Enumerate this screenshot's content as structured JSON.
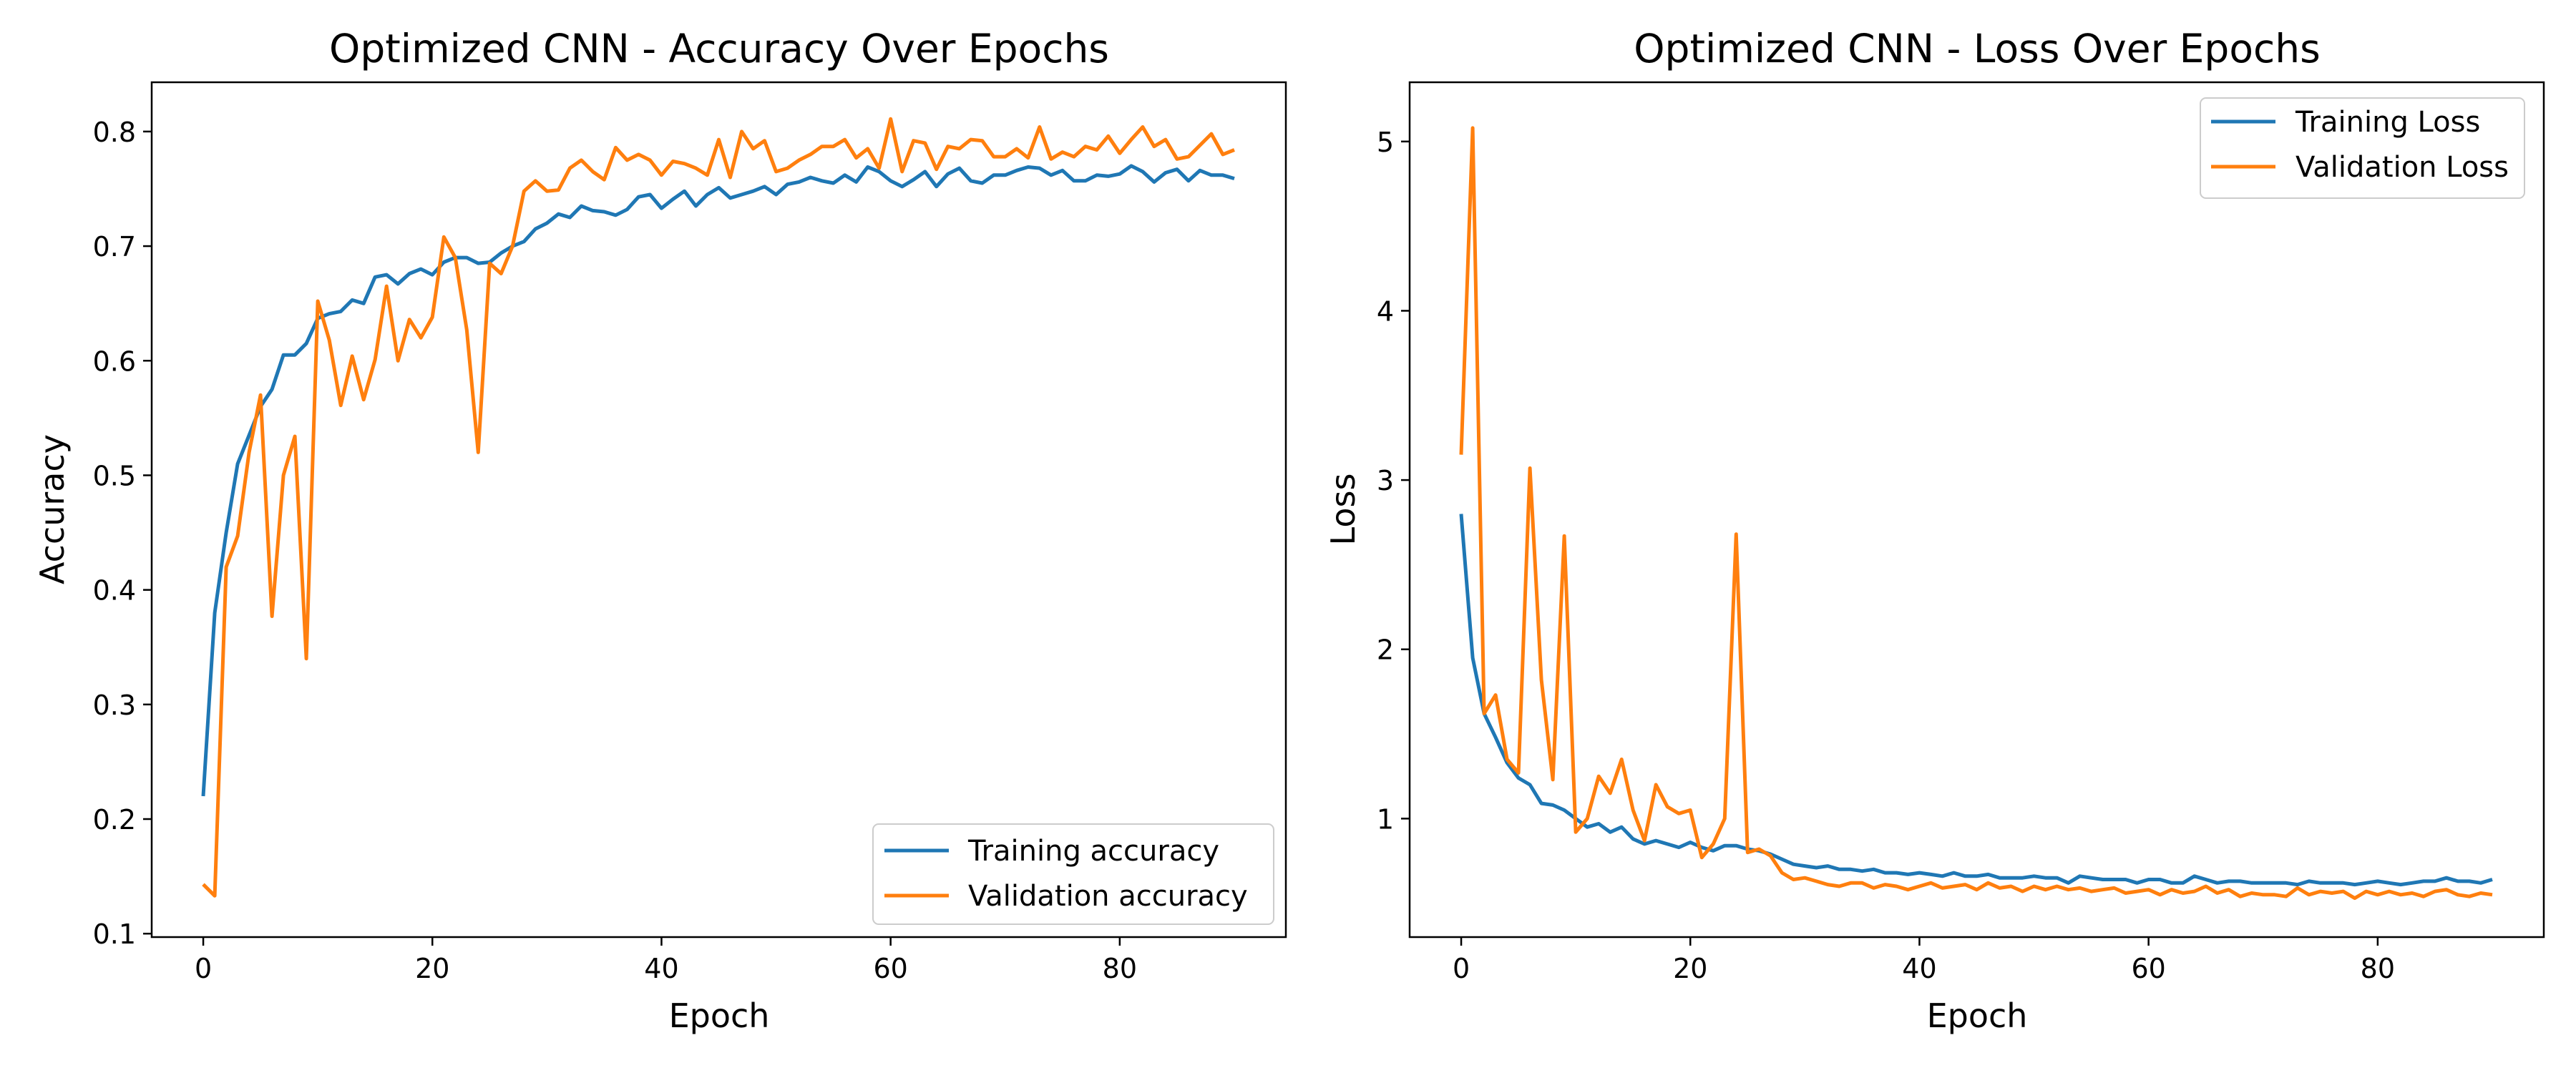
{
  "chart_data": [
    {
      "type": "line",
      "title": "Optimized CNN - Accuracy Over Epochs",
      "xlabel": "Epoch",
      "ylabel": "Accuracy",
      "xlim": [
        -4.5,
        94.5
      ],
      "ylim": [
        0.097,
        0.843
      ],
      "xticks": [
        "0",
        "20",
        "40",
        "60",
        "80"
      ],
      "yticks": [
        "0.1",
        "0.2",
        "0.3",
        "0.4",
        "0.5",
        "0.6",
        "0.7",
        "0.8"
      ],
      "grid": false,
      "legend_position": "lower right",
      "series": [
        {
          "name": "Training accuracy",
          "color": "#1f77b4",
          "x": [
            0,
            1,
            2,
            3,
            4,
            5,
            6,
            7,
            8,
            9,
            10,
            11,
            12,
            13,
            14,
            15,
            16,
            17,
            18,
            19,
            20,
            21,
            22,
            23,
            24,
            25,
            26,
            27,
            28,
            29,
            30,
            31,
            32,
            33,
            34,
            35,
            36,
            37,
            38,
            39,
            40,
            41,
            42,
            43,
            44,
            45,
            46,
            47,
            48,
            49,
            50,
            51,
            52,
            53,
            54,
            55,
            56,
            57,
            58,
            59,
            60,
            61,
            62,
            63,
            64,
            65,
            66,
            67,
            68,
            69,
            70,
            71,
            72,
            73,
            74,
            75,
            76,
            77,
            78,
            79,
            80,
            81,
            82,
            83,
            84,
            85,
            86,
            87,
            88,
            89,
            90
          ],
          "values": [
            0.22,
            0.38,
            0.45,
            0.51,
            0.535,
            0.56,
            0.575,
            0.605,
            0.605,
            0.615,
            0.637,
            0.641,
            0.643,
            0.653,
            0.65,
            0.673,
            0.675,
            0.667,
            0.676,
            0.68,
            0.675,
            0.686,
            0.69,
            0.69,
            0.685,
            0.686,
            0.694,
            0.7,
            0.704,
            0.715,
            0.72,
            0.728,
            0.725,
            0.735,
            0.731,
            0.73,
            0.727,
            0.732,
            0.743,
            0.745,
            0.733,
            0.741,
            0.748,
            0.735,
            0.745,
            0.751,
            0.742,
            0.745,
            0.748,
            0.752,
            0.745,
            0.754,
            0.756,
            0.76,
            0.757,
            0.755,
            0.762,
            0.756,
            0.769,
            0.765,
            0.757,
            0.752,
            0.758,
            0.765,
            0.752,
            0.763,
            0.768,
            0.757,
            0.755,
            0.762,
            0.762,
            0.766,
            0.769,
            0.768,
            0.762,
            0.766,
            0.757,
            0.757,
            0.762,
            0.761,
            0.763,
            0.77,
            0.765,
            0.756,
            0.764,
            0.767,
            0.757,
            0.766,
            0.762,
            0.762,
            0.759
          ]
        },
        {
          "name": "Validation accuracy",
          "color": "#ff7f0e",
          "x": [
            0,
            1,
            2,
            3,
            4,
            5,
            6,
            7,
            8,
            9,
            10,
            11,
            12,
            13,
            14,
            15,
            16,
            17,
            18,
            19,
            20,
            21,
            22,
            23,
            24,
            25,
            26,
            27,
            28,
            29,
            30,
            31,
            32,
            33,
            34,
            35,
            36,
            37,
            38,
            39,
            40,
            41,
            42,
            43,
            44,
            45,
            46,
            47,
            48,
            49,
            50,
            51,
            52,
            53,
            54,
            55,
            56,
            57,
            58,
            59,
            60,
            61,
            62,
            63,
            64,
            65,
            66,
            67,
            68,
            69,
            70,
            71,
            72,
            73,
            74,
            75,
            76,
            77,
            78,
            79,
            80,
            81,
            82,
            83,
            84,
            85,
            86,
            87,
            88,
            89,
            90
          ],
          "values": [
            0.143,
            0.133,
            0.42,
            0.447,
            0.52,
            0.57,
            0.377,
            0.5,
            0.534,
            0.34,
            0.652,
            0.618,
            0.561,
            0.604,
            0.566,
            0.601,
            0.665,
            0.6,
            0.636,
            0.62,
            0.638,
            0.708,
            0.69,
            0.627,
            0.52,
            0.685,
            0.676,
            0.7,
            0.748,
            0.757,
            0.748,
            0.749,
            0.768,
            0.775,
            0.765,
            0.758,
            0.786,
            0.775,
            0.78,
            0.775,
            0.762,
            0.774,
            0.772,
            0.768,
            0.762,
            0.793,
            0.76,
            0.8,
            0.785,
            0.792,
            0.765,
            0.768,
            0.775,
            0.78,
            0.787,
            0.787,
            0.793,
            0.777,
            0.785,
            0.768,
            0.811,
            0.765,
            0.792,
            0.79,
            0.767,
            0.787,
            0.785,
            0.793,
            0.792,
            0.778,
            0.778,
            0.785,
            0.777,
            0.804,
            0.776,
            0.782,
            0.778,
            0.787,
            0.784,
            0.796,
            0.781,
            0.793,
            0.804,
            0.787,
            0.793,
            0.776,
            0.778,
            0.788,
            0.798,
            0.78,
            0.784
          ]
        }
      ]
    },
    {
      "type": "line",
      "title": "Optimized CNN - Loss Over Epochs",
      "xlabel": "Epoch",
      "ylabel": "Loss",
      "xlim": [
        -4.5,
        94.5
      ],
      "ylim": [
        0.3,
        5.35
      ],
      "xticks": [
        "0",
        "20",
        "40",
        "60",
        "80"
      ],
      "yticks": [
        "1",
        "2",
        "3",
        "4",
        "5"
      ],
      "grid": false,
      "legend_position": "upper right",
      "series": [
        {
          "name": "Training Loss",
          "color": "#1f77b4",
          "x": [
            0,
            1,
            2,
            3,
            4,
            5,
            6,
            7,
            8,
            9,
            10,
            11,
            12,
            13,
            14,
            15,
            16,
            17,
            18,
            19,
            20,
            21,
            22,
            23,
            24,
            25,
            26,
            27,
            28,
            29,
            30,
            31,
            32,
            33,
            34,
            35,
            36,
            37,
            38,
            39,
            40,
            41,
            42,
            43,
            44,
            45,
            46,
            47,
            48,
            49,
            50,
            51,
            52,
            53,
            54,
            55,
            56,
            57,
            58,
            59,
            60,
            61,
            62,
            63,
            64,
            65,
            66,
            67,
            68,
            69,
            70,
            71,
            72,
            73,
            74,
            75,
            76,
            77,
            78,
            79,
            80,
            81,
            82,
            83,
            84,
            85,
            86,
            87,
            88,
            89,
            90
          ],
          "values": [
            2.8,
            1.95,
            1.62,
            1.48,
            1.33,
            1.24,
            1.2,
            1.09,
            1.08,
            1.05,
            1.0,
            0.95,
            0.97,
            0.92,
            0.95,
            0.88,
            0.85,
            0.87,
            0.85,
            0.83,
            0.86,
            0.83,
            0.81,
            0.84,
            0.84,
            0.82,
            0.81,
            0.79,
            0.76,
            0.73,
            0.72,
            0.71,
            0.72,
            0.7,
            0.7,
            0.69,
            0.7,
            0.68,
            0.68,
            0.67,
            0.68,
            0.67,
            0.66,
            0.68,
            0.66,
            0.66,
            0.67,
            0.65,
            0.65,
            0.65,
            0.66,
            0.65,
            0.65,
            0.62,
            0.66,
            0.65,
            0.64,
            0.64,
            0.64,
            0.62,
            0.64,
            0.64,
            0.62,
            0.62,
            0.66,
            0.64,
            0.62,
            0.63,
            0.63,
            0.62,
            0.62,
            0.62,
            0.62,
            0.61,
            0.63,
            0.62,
            0.62,
            0.62,
            0.61,
            0.62,
            0.63,
            0.62,
            0.61,
            0.62,
            0.63,
            0.63,
            0.65,
            0.63,
            0.63,
            0.62,
            0.64
          ]
        },
        {
          "name": "Validation Loss",
          "color": "#ff7f0e",
          "x": [
            0,
            1,
            2,
            3,
            4,
            5,
            6,
            7,
            8,
            9,
            10,
            11,
            12,
            13,
            14,
            15,
            16,
            17,
            18,
            19,
            20,
            21,
            22,
            23,
            24,
            25,
            26,
            27,
            28,
            29,
            30,
            31,
            32,
            33,
            34,
            35,
            36,
            37,
            38,
            39,
            40,
            41,
            42,
            43,
            44,
            45,
            46,
            47,
            48,
            49,
            50,
            51,
            52,
            53,
            54,
            55,
            56,
            57,
            58,
            59,
            60,
            61,
            62,
            63,
            64,
            65,
            66,
            67,
            68,
            69,
            70,
            71,
            72,
            73,
            74,
            75,
            76,
            77,
            78,
            79,
            80,
            81,
            82,
            83,
            84,
            85,
            86,
            87,
            88,
            89,
            90
          ],
          "values": [
            3.15,
            5.08,
            1.62,
            1.73,
            1.35,
            1.27,
            3.07,
            1.82,
            1.23,
            2.67,
            0.92,
            1.0,
            1.25,
            1.15,
            1.35,
            1.05,
            0.87,
            1.2,
            1.07,
            1.03,
            1.05,
            0.77,
            0.85,
            1.0,
            2.68,
            0.8,
            0.82,
            0.78,
            0.68,
            0.64,
            0.65,
            0.63,
            0.61,
            0.6,
            0.62,
            0.62,
            0.59,
            0.61,
            0.6,
            0.58,
            0.6,
            0.62,
            0.59,
            0.6,
            0.61,
            0.58,
            0.62,
            0.59,
            0.6,
            0.57,
            0.6,
            0.58,
            0.6,
            0.58,
            0.59,
            0.57,
            0.58,
            0.59,
            0.56,
            0.57,
            0.58,
            0.55,
            0.58,
            0.56,
            0.57,
            0.6,
            0.56,
            0.58,
            0.54,
            0.56,
            0.55,
            0.55,
            0.54,
            0.59,
            0.55,
            0.57,
            0.56,
            0.57,
            0.53,
            0.57,
            0.55,
            0.57,
            0.55,
            0.56,
            0.54,
            0.57,
            0.58,
            0.55,
            0.54,
            0.56,
            0.55
          ]
        }
      ]
    }
  ]
}
